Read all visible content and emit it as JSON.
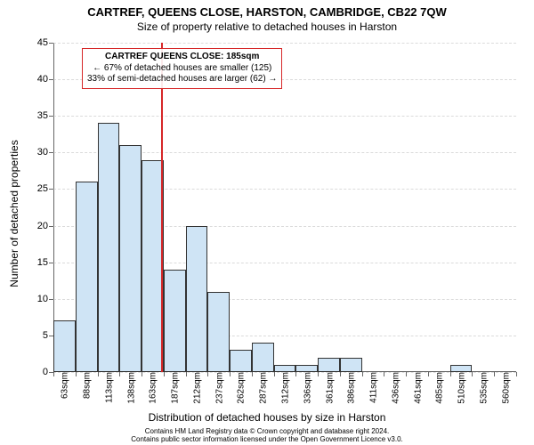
{
  "title_main": "CARTREF, QUEENS CLOSE, HARSTON, CAMBRIDGE, CB22 7QW",
  "title_sub": "Size of property relative to detached houses in Harston",
  "y_axis_label": "Number of detached properties",
  "x_axis_label": "Distribution of detached houses by size in Harston",
  "chart": {
    "type": "histogram",
    "background_color": "#ffffff",
    "grid_color": "#cccccc",
    "axis_color": "#666666",
    "bar_fill": "#cfe4f5",
    "bar_stroke": "#333333",
    "ylim": [
      0,
      45
    ],
    "ytick_step": 5,
    "yticks": [
      0,
      5,
      10,
      15,
      20,
      25,
      30,
      35,
      40,
      45
    ],
    "x_tick_labels": [
      "63sqm",
      "88sqm",
      "113sqm",
      "138sqm",
      "163sqm",
      "187sqm",
      "212sqm",
      "237sqm",
      "262sqm",
      "287sqm",
      "312sqm",
      "336sqm",
      "361sqm",
      "386sqm",
      "411sqm",
      "436sqm",
      "461sqm",
      "485sqm",
      "510sqm",
      "535sqm",
      "560sqm"
    ],
    "values": [
      7,
      26,
      34,
      31,
      29,
      14,
      20,
      11,
      3,
      4,
      1,
      1,
      2,
      2,
      0,
      0,
      0,
      0,
      1,
      0,
      0
    ],
    "reference_line": {
      "x_index": 4.9,
      "color": "#d62728"
    },
    "annotation": {
      "border_color": "#d62728",
      "line1": "CARTREF QUEENS CLOSE: 185sqm",
      "line2": "← 67% of detached houses are smaller (125)",
      "line3": "33% of semi-detached houses are larger (62) →"
    }
  },
  "footer_line1": "Contains HM Land Registry data © Crown copyright and database right 2024.",
  "footer_line2": "Contains public sector information licensed under the Open Government Licence v3.0."
}
